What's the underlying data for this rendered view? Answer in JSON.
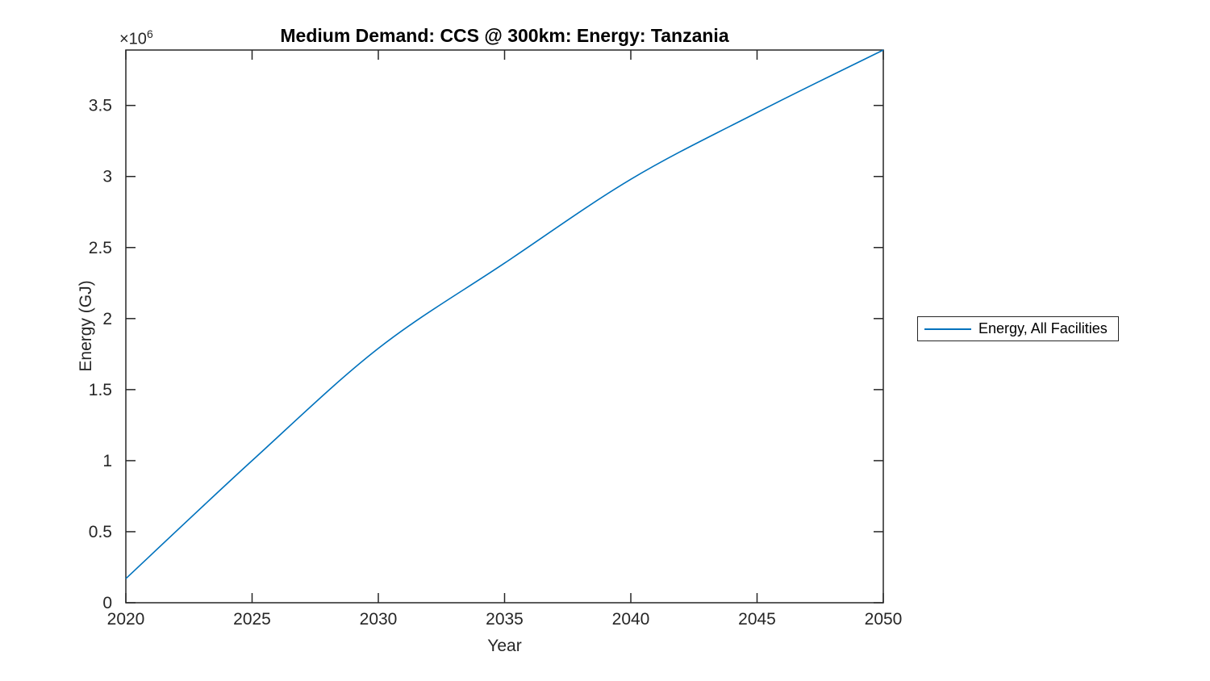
{
  "chart_data": {
    "type": "line",
    "title": "Medium Demand: CCS @ 300km: Energy: Tanzania",
    "xlabel": "Year",
    "ylabel": "Energy (GJ)",
    "y_offset_label": {
      "base": "×10",
      "exponent": "6"
    },
    "x": [
      2020,
      2025,
      2030,
      2035,
      2040,
      2045,
      2050
    ],
    "series": [
      {
        "name": "Energy, All Facilities",
        "color": "#0072BD",
        "values": [
          170000,
          1000000,
          1790000,
          2390000,
          2980000,
          3450000,
          3890000
        ]
      }
    ],
    "xlim": [
      2020,
      2050
    ],
    "ylim": [
      0,
      3890000
    ],
    "xticks": [
      2020,
      2025,
      2030,
      2035,
      2040,
      2045,
      2050
    ],
    "xtick_labels": [
      "2020",
      "2025",
      "2030",
      "2035",
      "2040",
      "2045",
      "2050"
    ],
    "yticks": [
      0,
      500000,
      1000000,
      1500000,
      2000000,
      2500000,
      3000000,
      3500000
    ],
    "ytick_labels": [
      "0",
      "0.5",
      "1",
      "1.5",
      "2",
      "2.5",
      "3",
      "3.5"
    ],
    "grid": false,
    "box": true,
    "legend_position": "right-outside",
    "axis_color": "#262626",
    "background_color": "#ffffff"
  }
}
